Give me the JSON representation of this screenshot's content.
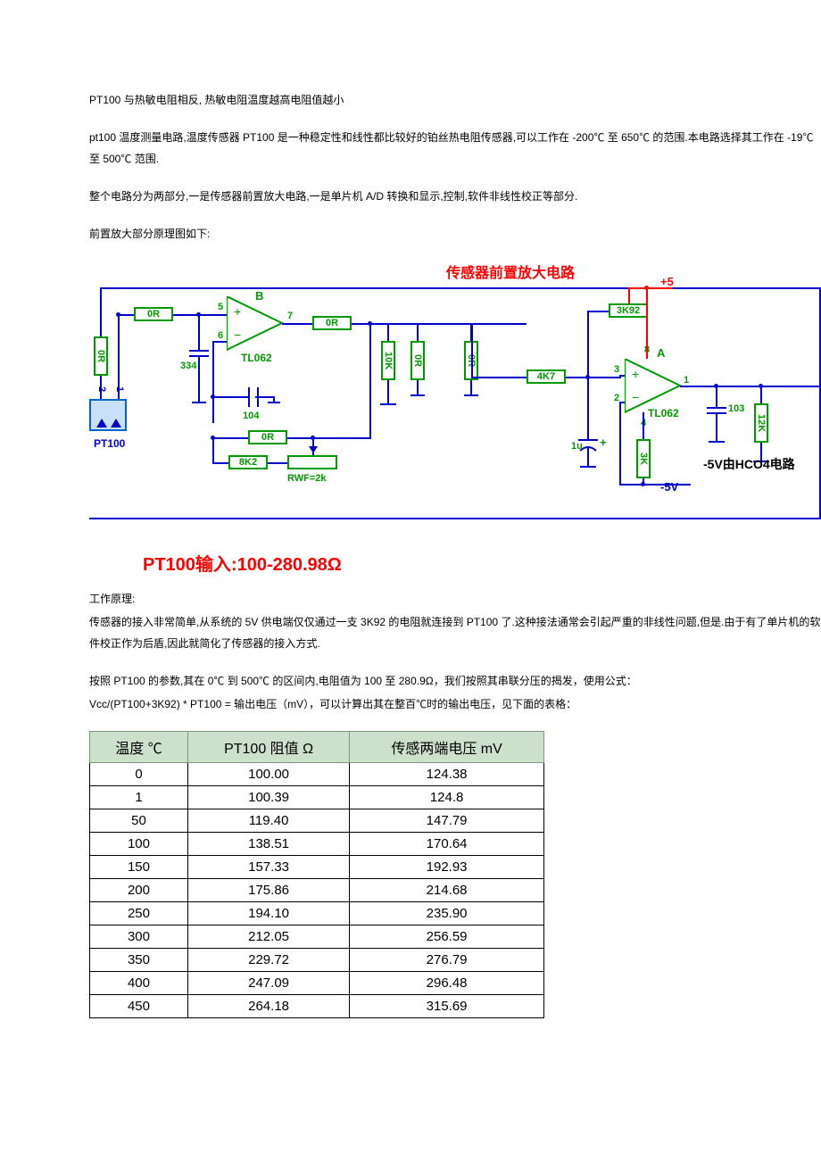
{
  "paragraphs": {
    "p1": "PT100 与热敏电阻相反, 热敏电阻温度越高电阻值越小",
    "p2": "pt100 温度测量电路,温度传感器 PT100 是一种稳定性和线性都比较好的铂丝热电阻传感器,可以工作在 -200℃ 至 650℃ 的范围.本电路选择其工作在 -19℃ 至 500℃ 范围.",
    "p3": "整个电路分为两部分,一是传感器前置放大电路,一是单片机 A/D 转换和显示,控制,软件非线性校正等部分.",
    "p4": "前置放大部分原理图如下:",
    "p5": "工作原理:",
    "p6": "传感器的接入非常简单,从系统的 5V 供电端仅仅通过一支 3K92 的电阻就连接到 PT100 了.这种接法通常会引起严重的非线性问题,但是.由于有了单片机的软件校正作为后盾,因此就简化了传感器的接入方式.",
    "p7": "按照 PT100 的参数,其在 0℃ 到 500℃ 的区间内,电阻值为 100 至 280.9Ω，我们按照其串联分压的揭发，使用公式：",
    "p8": "Vcc/(PT100+3K92) * PT100 = 输出电压（mV），可以计算出其在整百℃时的输出电压，见下面的表格："
  },
  "diagram": {
    "title": "传感器前置放大电路",
    "caption": "PT100输入:100-280.98Ω",
    "opamp_ic": "TL062",
    "labels": {
      "B": "B",
      "A": "A",
      "p5v": "+5",
      "m5v": "-5V",
      "note": "-5V由HCO4电路"
    },
    "pins": {
      "b5": "5",
      "b6": "6",
      "b7": "7",
      "a3": "3",
      "a2": "2",
      "a1": "1",
      "a8": "8",
      "a4": "4",
      "s1": "1",
      "s2": "2"
    },
    "parts": {
      "R_in1": "0R",
      "R_in2": "0R",
      "R_7": "0R",
      "R_v1": "0R",
      "R_v2": "0R",
      "R_fb": "0R",
      "R_8k2": "8K2",
      "R_3k92": "3K92",
      "R_4k7": "4K7",
      "R_3k": "3K",
      "R_12k": "12K",
      "R_10k": "10K",
      "RWF": "RWF=2k",
      "C_334": "334",
      "C_104": "104",
      "C_103": "103",
      "C_1u": "1u",
      "sensor": "PT100"
    },
    "colors": {
      "wire": "#0000cc",
      "vcc": "#ff0000",
      "res": "#009900",
      "text": "#000000",
      "gnd": "#0000cc"
    }
  },
  "table": {
    "columns": [
      "温度 ℃",
      "PT100 阻值 Ω",
      "传感两端电压 mV"
    ],
    "rows": [
      [
        "0",
        "100.00",
        "124.38"
      ],
      [
        "1",
        "100.39",
        "124.8"
      ],
      [
        "50",
        "119.40",
        "147.79"
      ],
      [
        "100",
        "138.51",
        "170.64"
      ],
      [
        "150",
        "157.33",
        "192.93"
      ],
      [
        "200",
        "175.86",
        "214.68"
      ],
      [
        "250",
        "194.10",
        "235.90"
      ],
      [
        "300",
        "212.05",
        "256.59"
      ],
      [
        "350",
        "229.72",
        "276.79"
      ],
      [
        "400",
        "247.09",
        "296.48"
      ],
      [
        "450",
        "264.18",
        "315.69"
      ]
    ],
    "header_bg": "#cce0cc",
    "header_border": "#7a9a7a",
    "cell_border": "#000000"
  }
}
